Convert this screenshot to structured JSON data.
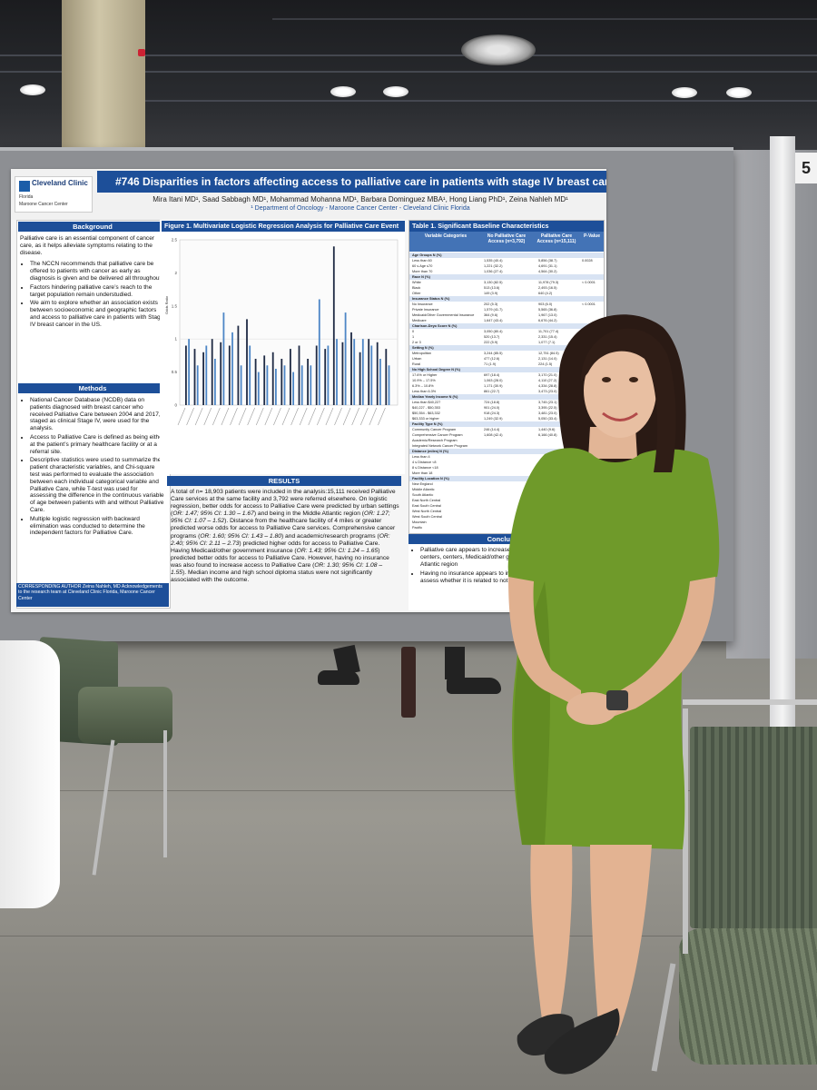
{
  "booth_number": "5",
  "poster": {
    "logo": {
      "name": "Cleveland Clinic",
      "location": "Florida",
      "unit": "Maroone Cancer Center"
    },
    "title": "#746  Disparities in factors affecting access to palliative care in patients with stage IV breast cancer",
    "authors": "Mira Itani MD¹, Saad Sabbagh MD¹, Mohammad Mohanna MD¹, Barbara Dominguez MBA¹, Hong Liang PhD¹, Zeina Nahleh MD¹",
    "affiliation": "¹ Department of Oncology - Maroone Cancer Center - Cleveland Clinic Florida",
    "background": {
      "heading": "Background",
      "intro": "Palliative care is an essential component of cancer care, as it helps alleviate symptoms relating to the disease.",
      "bullets": [
        "The NCCN recommends that palliative care be offered to patients with cancer as early as diagnosis is given and be delivered all throughout.",
        "Factors hindering palliative care’s reach to the target population remain understudied.",
        "We aim to explore whether an association exists between socioeconomic and geographic factors and access to palliative care in patients with Stage IV breast cancer in the US."
      ]
    },
    "methods": {
      "heading": "Methods",
      "bullets": [
        "National Cancer Database (NCDB) data on patients diagnosed with breast cancer who received Palliative Care between 2004 and 2017, staged as clinical Stage IV, were used for the analysis.",
        "Access to Palliative Care is defined as being either at the patient’s primary healthcare facility or at a referral site.",
        "Descriptive statistics were used to summarize the patient characteristic variables, and Chi-square test was performed to evaluate the association between each individual categorical variable and Palliative Care, while T-test was used for assessing the difference in the continuous variable of age between patients with and without Palliative Care.",
        "Multiple logistic regression with backward elimination was conducted to determine the independent factors for Palliative Care."
      ]
    },
    "corresponding": "CORRESPONDING AUTHOR Zeina Nahleh, MD   Acknowledgements to the research team at Cleveland Clinic Florida, Maroone Cancer Center",
    "figure": {
      "title": "Figure 1. Multivariate Logistic Regression Analysis for Palliative Care Event"
    },
    "results": {
      "heading": "RESULTS",
      "text_parts": [
        {
          "t": "A total of n= 18,903 patients were included in the analysis:15,111 received Palliative Care services at the same facility and 3,792 were referred elsewhere. On logistic regression, better odds for access to Palliative Care were predicted by urban settings (",
          "i": false
        },
        {
          "t": "OR: 1.47; 95% CI: 1.30 – 1.67",
          "i": true
        },
        {
          "t": ") and being in the Middle Atlantic region (",
          "i": false
        },
        {
          "t": "OR: 1.27; 95% CI: 1.07 – 1.52",
          "i": true
        },
        {
          "t": "). Distance from the healthcare facility of 4 miles or greater predicted worse odds for access to Palliative Care services. Comprehensive cancer programs (",
          "i": false
        },
        {
          "t": "OR: 1.60; 95% CI: 1.43 – 1.80",
          "i": true
        },
        {
          "t": ") and academic/research programs (",
          "i": false
        },
        {
          "t": "OR: 2.40; 95% CI: 2.11 – 2.73",
          "i": true
        },
        {
          "t": ") predicted higher odds for access to Palliative Care. Having Medicaid/other government insurance (",
          "i": false
        },
        {
          "t": "OR: 1.43; 95% CI: 1.24 – 1.65",
          "i": true
        },
        {
          "t": ") predicted better odds for access to Palliative Care. However, having no insurance was also found to increase access to Palliative Care (",
          "i": false
        },
        {
          "t": "OR: 1.30; 95% CI: 1.08 – 1.55",
          "i": true
        },
        {
          "t": "). Median income and high school diploma status were not significantly associated with the outcome.",
          "i": false
        }
      ]
    },
    "table": {
      "title": "Table 1. Significant Baseline Characteristics",
      "headers": [
        "Variable Categories",
        "No Palliative Care Access (n=3,792)",
        "Palliative Care Access (n=15,111)",
        "P-Value"
      ],
      "rows": [
        [
          "Age Groups N (%)",
          "",
          "",
          "",
          true
        ],
        [
          "Less than 60",
          "1,535 (40.4)",
          "5,856 (38.7)",
          "0.0028",
          false
        ],
        [
          "60 ≤ Age ≤70",
          "1,221 (32.2)",
          "4,691 (31.1)",
          "",
          false
        ],
        [
          "More than 70",
          "1,036 (27.4)",
          "4,564 (30.2)",
          "",
          false
        ],
        [
          "Race N (%)",
          "",
          "",
          "",
          true
        ],
        [
          "White",
          "3,130 (82.5)",
          "11,978 (79.3)",
          "< 0.0001",
          false
        ],
        [
          "Black",
          "513 (13.6)",
          "2,493 (16.5)",
          "",
          false
        ],
        [
          "Other",
          "149 (3.9)",
          "640 (4.2)",
          "",
          false
        ],
        [
          "Insurance Status N (%)",
          "",
          "",
          "",
          true
        ],
        [
          "No Insurance",
          "202 (5.3)",
          "903 (6.0)",
          "< 0.0001",
          false
        ],
        [
          "Private Insurance",
          "1,579 (41.7)",
          "5,565 (36.8)",
          "",
          false
        ],
        [
          "Medicaid/Other Governmental Insurance",
          "364 (9.6)",
          "1,967 (13.0)",
          "",
          false
        ],
        [
          "Medicare",
          "1,647 (43.4)",
          "6,676 (44.2)",
          "",
          false
        ],
        [
          "Charlson-Deyo Score N (%)",
          "",
          "",
          "",
          true
        ],
        [
          "0",
          "3,050 (80.4)",
          "11,701 (77.4)",
          "0.0002",
          false
        ],
        [
          "1",
          "520 (13.7)",
          "2,331 (15.4)",
          "",
          false
        ],
        [
          "2 or 3",
          "222 (5.9)",
          "1,077 (7.1)",
          "",
          false
        ],
        [
          "Setting N (%)",
          "",
          "",
          "",
          true
        ],
        [
          "Metropolitan",
          "3,244 (85.5)",
          "12,751 (84.5)",
          "",
          false
        ],
        [
          "Urban",
          "477 (12.6)",
          "2,131 (14.0)",
          "",
          false
        ],
        [
          "Rural",
          "71 (1.9)",
          "224 (1.5)",
          "",
          false
        ],
        [
          "No High School Degree N (%)",
          "",
          "",
          "",
          true
        ],
        [
          "17.6% or Higher",
          "697 (18.4)",
          "3,170 (21.0)",
          "",
          false
        ],
        [
          "10.9% – 17.5%",
          "1,063 (28.0)",
          "4,110 (27.2)",
          "",
          false
        ],
        [
          "6.3% – 10.8%",
          "1,171 (30.9)",
          "4,334 (28.8)",
          "",
          false
        ],
        [
          "Less than 6.3%",
          "861 (22.7)",
          "3,473 (23.0)",
          "",
          false
        ],
        [
          "Median Yearly Income N (%)",
          "",
          "",
          "",
          true
        ],
        [
          "Less than $40,227",
          "724 (18.8)",
          "3,745 (23.1)",
          "",
          false
        ],
        [
          "$40,227 - $50,353",
          "901 (24.0)",
          "3,395 (22.5)",
          "",
          false
        ],
        [
          "$50,354 - $63,332",
          "918 (24.3)",
          "3,481 (23.0)",
          "",
          false
        ],
        [
          "$63,333 or higher",
          "1,249 (32.9)",
          "5,050 (33.4)",
          "",
          false
        ],
        [
          "Facility Type N (%)",
          "",
          "",
          "",
          true
        ],
        [
          "Community Cancer Program",
          "246 (14.4)",
          "1,440 (9.6)",
          "",
          false
        ],
        [
          "Comprehensive Cancer Program",
          "1,608 (42.4)",
          "6,166 (40.8)",
          "",
          false
        ],
        [
          "Academic/Research Program",
          "",
          "",
          "",
          false
        ],
        [
          "Integrated Network Cancer Program",
          "",
          "",
          "",
          false
        ],
        [
          "Distance (miles) N (%)",
          "",
          "",
          "",
          true
        ],
        [
          "Less than 4",
          "",
          "",
          "",
          false
        ],
        [
          "4 ≤ Distance <8",
          "",
          "",
          "",
          false
        ],
        [
          "8 ≤ Distance <18",
          "",
          "",
          "",
          false
        ],
        [
          "More than 18",
          "",
          "",
          "",
          false
        ],
        [
          "Facility Location N (%)",
          "",
          "",
          "",
          true
        ],
        [
          "New England",
          "",
          "",
          "",
          false
        ],
        [
          "Middle Atlantic",
          "",
          "",
          "",
          false
        ],
        [
          "South Atlantic",
          "",
          "",
          "",
          false
        ],
        [
          "East North Central",
          "",
          "",
          "",
          false
        ],
        [
          "East South Central",
          "",
          "",
          "",
          false
        ],
        [
          "West North Central",
          "",
          "",
          "",
          false
        ],
        [
          "West South Central",
          "",
          "",
          "",
          false
        ],
        [
          "Mountain",
          "",
          "",
          "",
          false
        ],
        [
          "Pacific",
          "",
          "",
          "",
          false
        ]
      ]
    },
    "conclusion": {
      "heading": "Conclusion",
      "bullets": [
        "Palliative care appears to increase in settings, nearby healthcare centers, centers, Medicaid/other government being in the Middle Atlantic region",
        "Having no insurance appears to in use, which needs further investig assess whether it is related to not treatment and more Palliative Care"
      ]
    }
  },
  "chart_data": {
    "type": "bar",
    "ylabel": "Odds Ratio",
    "ylim": [
      0,
      2.5
    ],
    "yticks": [
      0,
      0.5,
      1,
      1.5,
      2,
      2.5
    ],
    "series": [
      {
        "values": [
          0.9,
          0.85,
          0.8,
          1.0,
          0.95,
          0.9,
          1.2,
          1.3,
          0.7,
          0.75,
          0.8,
          0.7,
          0.85,
          0.9,
          0.7,
          0.9,
          0.85,
          2.4,
          0.95,
          1.1,
          0.8,
          1.0,
          0.95,
          0.85
        ]
      },
      {
        "values": [
          1.0,
          0.6,
          0.9,
          0.7,
          1.4,
          1.1,
          0.6,
          0.9,
          0.5,
          0.6,
          0.55,
          0.6,
          0.5,
          0.6,
          0.6,
          1.6,
          0.9,
          1.0,
          1.4,
          1.0,
          1.0,
          0.9,
          0.7,
          0.6
        ]
      }
    ]
  },
  "colors": {
    "poster_blue": "#1d4f99",
    "dress_green": "#6f9a2a",
    "board_grey": "#8d8f93"
  }
}
